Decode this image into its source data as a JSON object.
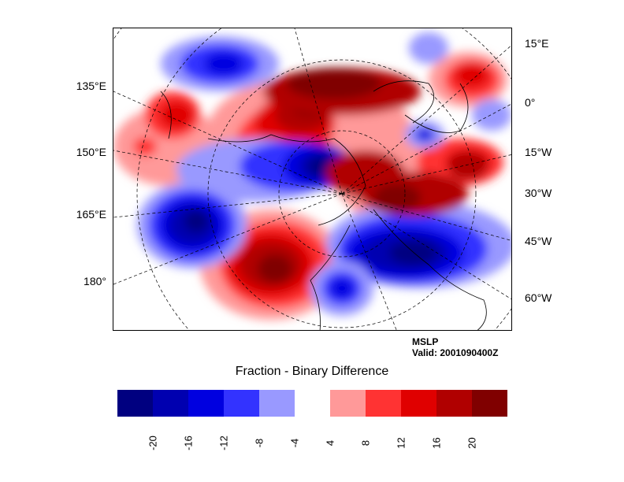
{
  "plot": {
    "variable": "MSLP",
    "valid": "Valid: 2001090400Z",
    "title": "Fraction - Binary Difference"
  },
  "map": {
    "left_labels": [
      "135°E",
      "150°E",
      "165°E",
      "180°"
    ],
    "right_labels": [
      "15°E",
      "0°",
      "15°W",
      "30°W",
      "45°W",
      "60°W"
    ]
  },
  "colorbar": {
    "colors": [
      "#000080",
      "#0000b0",
      "#0000e0",
      "#3333ff",
      "#9999ff",
      "#ffffff",
      "#ff9999",
      "#ff3333",
      "#e00000",
      "#b00000",
      "#800000"
    ],
    "labels": [
      "-20",
      "-16",
      "-12",
      "-8",
      "-4",
      "4",
      "8",
      "12",
      "16",
      "20"
    ]
  }
}
